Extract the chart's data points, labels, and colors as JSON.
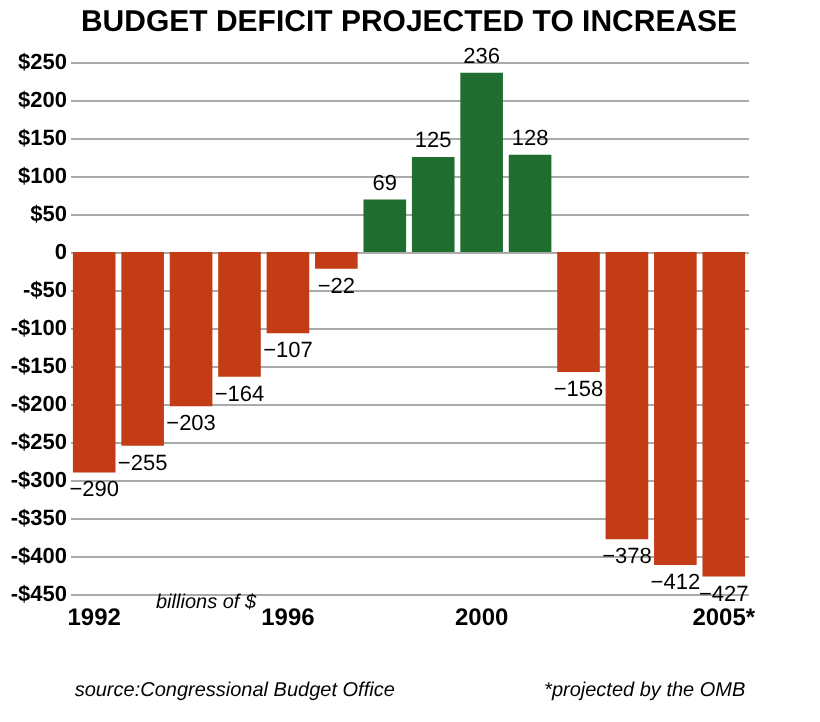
{
  "chart_data": {
    "type": "bar",
    "title": "BUDGET DEFICIT PROJECTED TO INCREASE",
    "categories": [
      "1992",
      null,
      null,
      null,
      "1996",
      null,
      null,
      null,
      "2000",
      null,
      null,
      null,
      null,
      "2005*"
    ],
    "values": [
      -290,
      -255,
      -203,
      -164,
      -107,
      -22,
      69,
      125,
      236,
      128,
      -158,
      -378,
      -412,
      -427
    ],
    "colors": [
      "#c43c16",
      "#c43c16",
      "#c43c16",
      "#c43c16",
      "#c43c16",
      "#c43c16",
      "#1f6e30",
      "#1f6e30",
      "#1f6e30",
      "#1f6e30",
      "#c43c16",
      "#c43c16",
      "#c43c16",
      "#c43c16"
    ],
    "ylim": [
      -450,
      250
    ],
    "yticks": [
      {
        "value": 250,
        "label": "$250"
      },
      {
        "value": 200,
        "label": "$200"
      },
      {
        "value": 150,
        "label": "$150"
      },
      {
        "value": 100,
        "label": "$100"
      },
      {
        "value": 50,
        "label": "$50"
      },
      {
        "value": 0,
        "label": "0"
      },
      {
        "value": -50,
        "label": "-$50"
      },
      {
        "value": -100,
        "label": "-$100"
      },
      {
        "value": -150,
        "label": "-$150"
      },
      {
        "value": -200,
        "label": "-$200"
      },
      {
        "value": -250,
        "label": "-$250"
      },
      {
        "value": -300,
        "label": "-$300"
      },
      {
        "value": -350,
        "label": "-$350"
      },
      {
        "value": -400,
        "label": "-$400"
      },
      {
        "value": -450,
        "label": "-$450"
      }
    ],
    "grid": "y",
    "data_labels": true,
    "annotations": [
      "billions of $",
      "source:Congressional Budget Office",
      "*projected by the OMB"
    ]
  }
}
